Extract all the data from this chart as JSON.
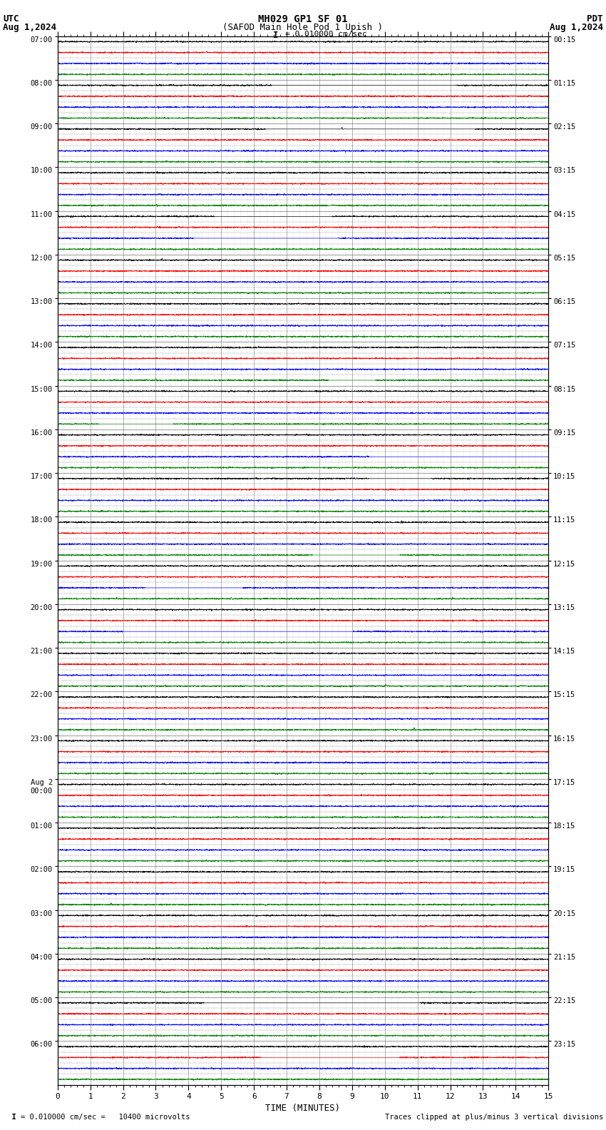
{
  "title_line1": "MH029 GP1 SF 01",
  "title_line2": "(SAFOD Main Hole Pod 1 Upish )",
  "scale_label": "= 0.010000 cm/sec",
  "left_header": "UTC",
  "left_date": "Aug 1,2024",
  "right_header": "PDT",
  "right_date": "Aug 1,2024",
  "xlabel": "TIME (MINUTES)",
  "footer_left": "  I = 0.010000 cm/sec =   10400 microvolts",
  "footer_right": "Traces clipped at plus/minus 3 vertical divisions",
  "xlim": [
    0,
    15
  ],
  "xticks": [
    0,
    1,
    2,
    3,
    4,
    5,
    6,
    7,
    8,
    9,
    10,
    11,
    12,
    13,
    14,
    15
  ],
  "bg_color": "#ffffff",
  "grid_color": "#aaaaaa",
  "trace_colors_pattern": [
    "black",
    "red",
    "blue",
    "green"
  ],
  "num_hours": 24,
  "rows_per_hour": 4,
  "utc_labels": [
    "07:00",
    "08:00",
    "09:00",
    "10:00",
    "11:00",
    "12:00",
    "13:00",
    "14:00",
    "15:00",
    "16:00",
    "17:00",
    "18:00",
    "19:00",
    "20:00",
    "21:00",
    "22:00",
    "23:00",
    "Aug 2\n00:00",
    "01:00",
    "02:00",
    "03:00",
    "04:00",
    "05:00",
    "06:00"
  ],
  "pdt_labels": [
    "00:15",
    "01:15",
    "02:15",
    "03:15",
    "04:15",
    "05:15",
    "06:15",
    "07:15",
    "08:15",
    "09:15",
    "10:15",
    "11:15",
    "12:15",
    "13:15",
    "14:15",
    "15:15",
    "16:15",
    "17:15",
    "18:15",
    "19:15",
    "20:15",
    "21:15",
    "22:15",
    "23:15"
  ]
}
